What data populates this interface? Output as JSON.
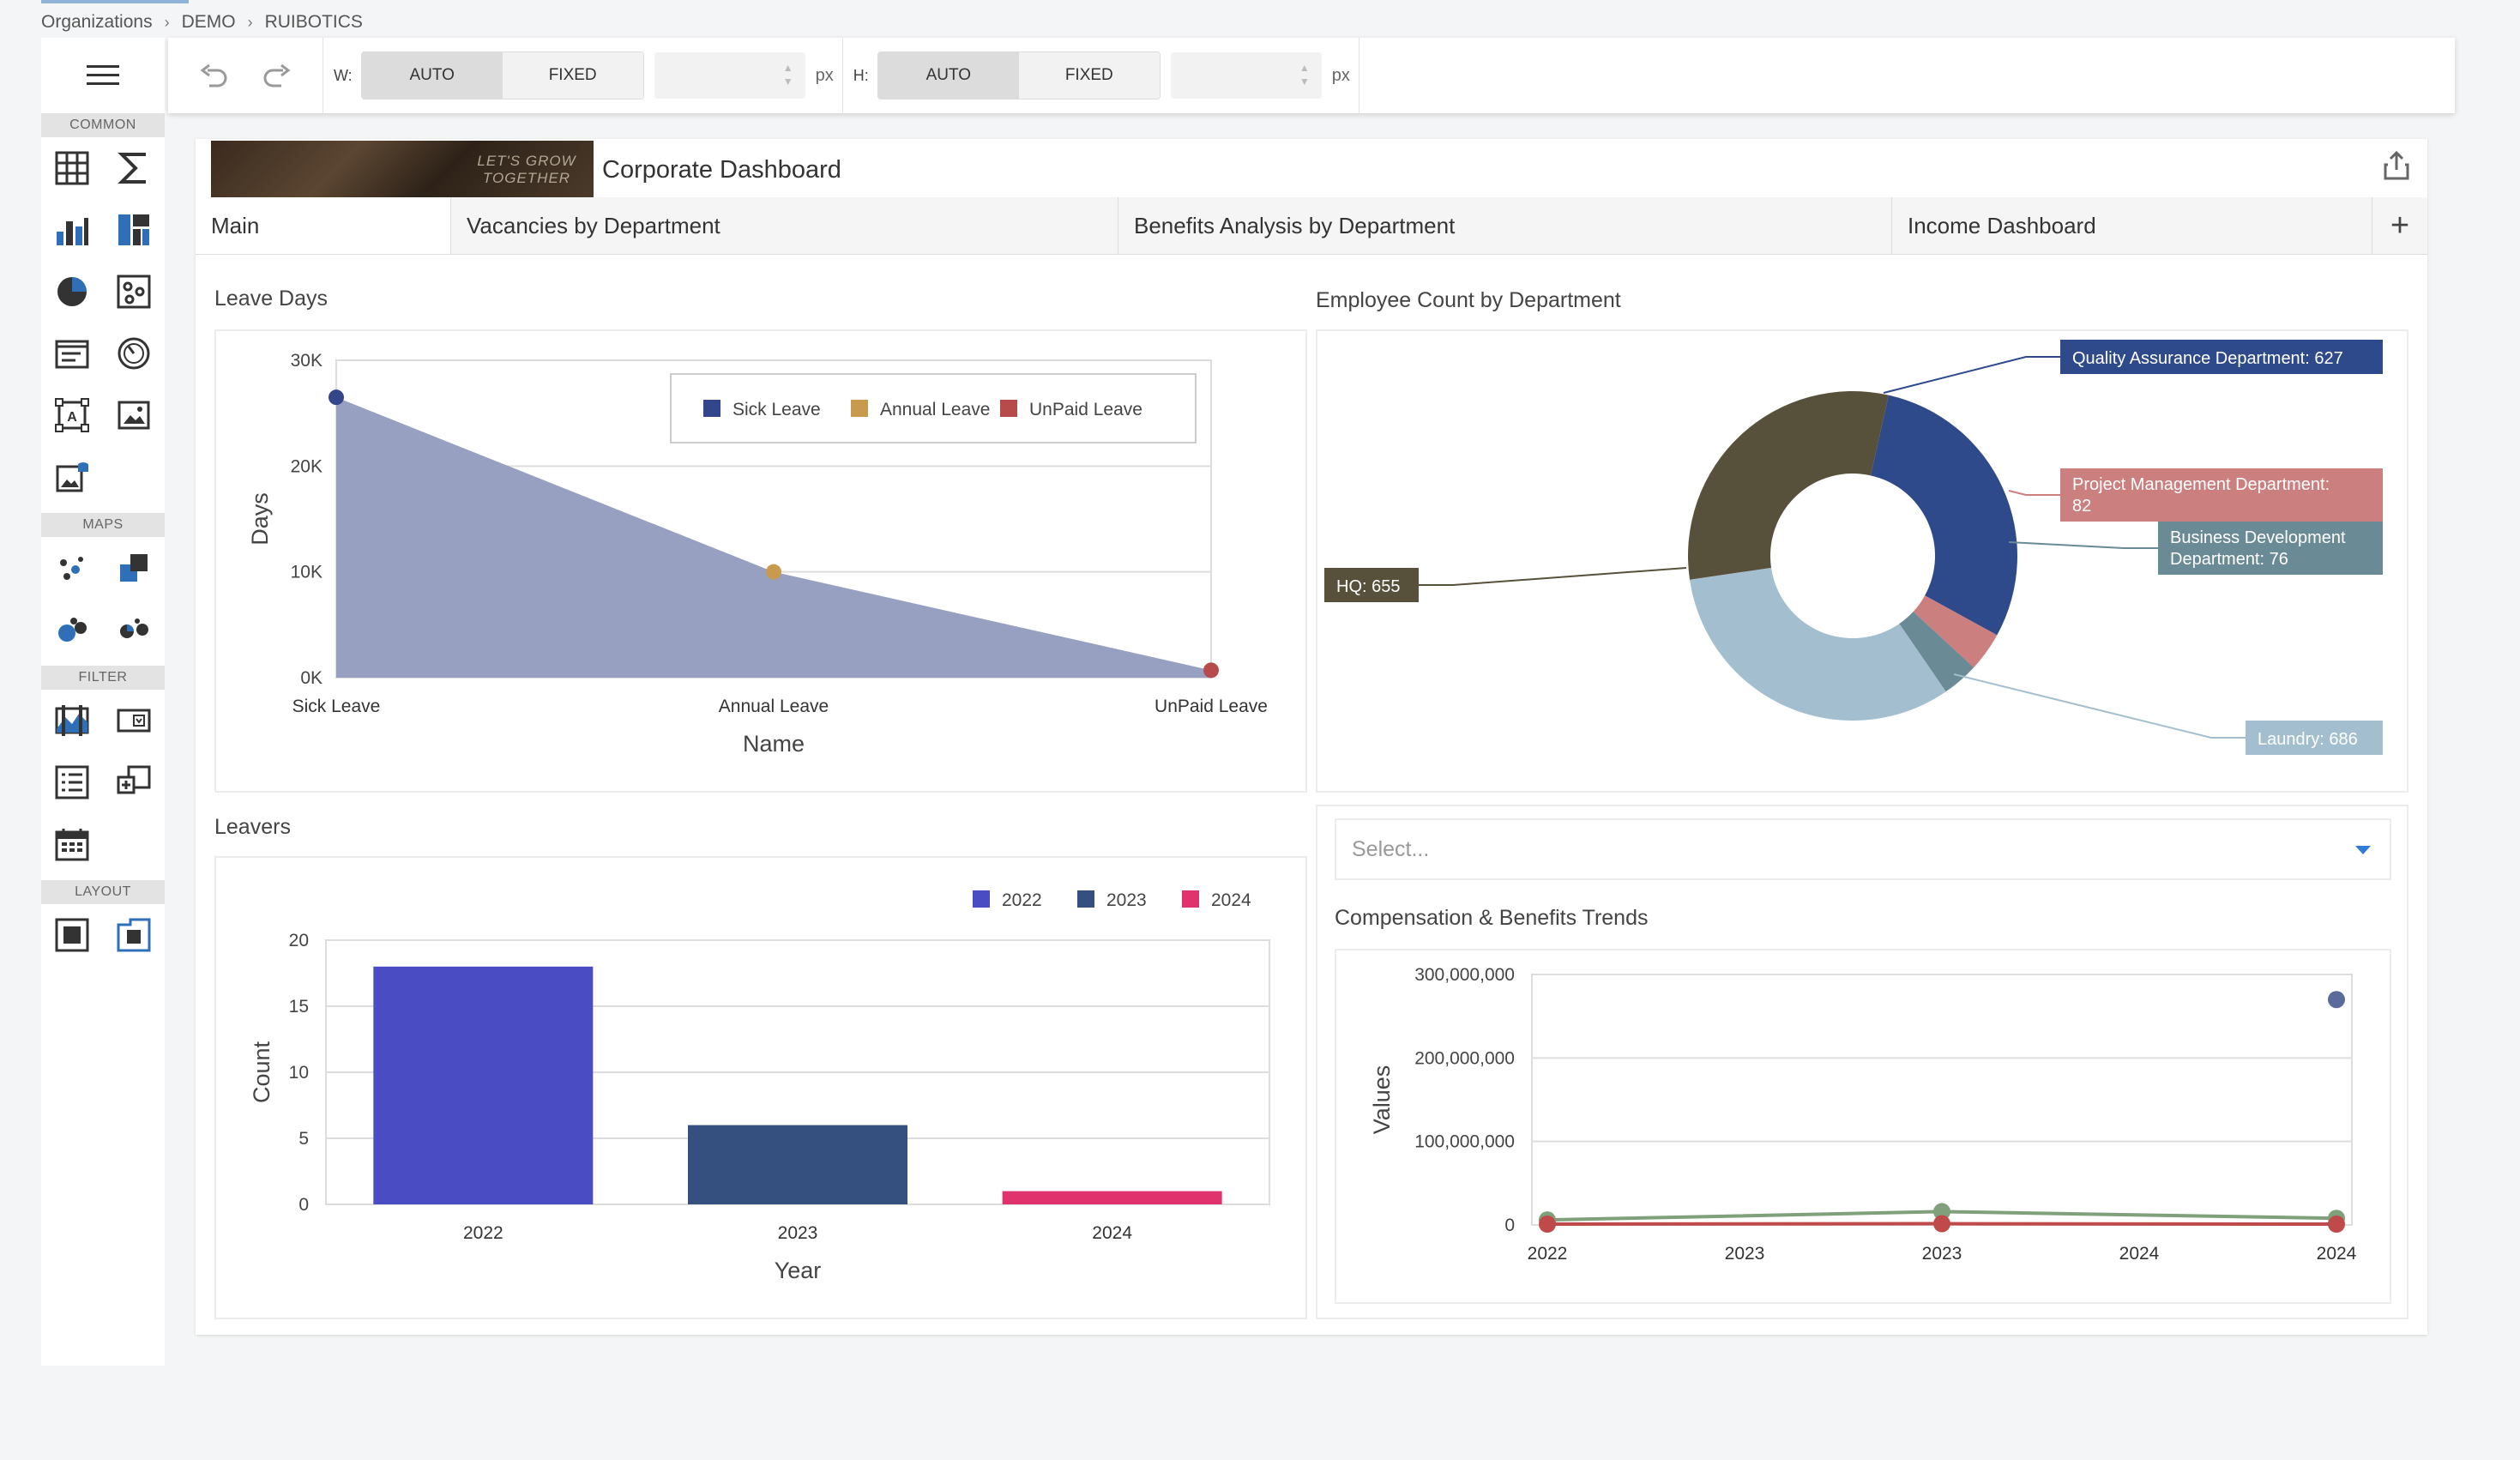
{
  "breadcrumb": [
    "Organizations",
    "DEMO",
    "RUIBOTICS"
  ],
  "palette": {
    "sections": {
      "common": "COMMON",
      "maps": "MAPS",
      "filter": "FILTER",
      "layout": "LAYOUT"
    },
    "common_icons": [
      "table-icon",
      "sigma-icon",
      "bar-chart-icon",
      "treemap-icon",
      "pie-chart-icon",
      "scatter-icon",
      "text-card-icon",
      "gauge-icon",
      "text-box-icon",
      "image-icon",
      "bound-image-icon"
    ],
    "maps_icons": [
      "geo-points-icon",
      "choropleth-icon",
      "bubble-map-icon",
      "pie-map-icon"
    ],
    "filter_icons": [
      "range-filter-icon",
      "combo-box-icon",
      "list-box-icon",
      "tree-view-icon",
      "date-filter-icon"
    ],
    "layout_icons": [
      "group-icon",
      "tab-container-icon"
    ]
  },
  "toolbar": {
    "w_label": "W:",
    "h_label": "H:",
    "auto": "AUTO",
    "fixed": "FIXED",
    "unit": "px",
    "w_value": "",
    "h_value": ""
  },
  "dashboard": {
    "banner_text": "LET'S GROW TOGETHER",
    "title": "Corporate Dashboard",
    "tabs": [
      "Main",
      "Vacancies by Department",
      "Benefits Analysis by Department",
      "Income Dashboard"
    ],
    "add_tab": "+"
  },
  "leave_days": {
    "title": "Leave Days",
    "chart_data": {
      "type": "area",
      "categories": [
        "Sick Leave",
        "Annual Leave",
        "UnPaid Leave"
      ],
      "values": [
        26500,
        10000,
        700
      ],
      "point_colors": [
        "#33468a",
        "#c89a4e",
        "#b74a4a"
      ],
      "fill": "#97a0c0",
      "ylim": [
        0,
        30000
      ],
      "yticks": [
        "0K",
        "10K",
        "20K",
        "30K"
      ],
      "ytick_values": [
        0,
        10000,
        20000,
        30000
      ],
      "xlabel": "Name",
      "ylabel": "Days",
      "legend": [
        {
          "name": "Sick Leave",
          "color": "#33468a"
        },
        {
          "name": "Annual Leave",
          "color": "#c89a4e"
        },
        {
          "name": "UnPaid Leave",
          "color": "#b74a4a"
        }
      ],
      "legend_position": "top-right",
      "grid": true
    }
  },
  "employee_count": {
    "title": "Employee Count by Department",
    "chart_data": {
      "type": "pie",
      "donut": true,
      "slices": [
        {
          "label": "Quality Assurance Department: 627",
          "value": 627,
          "color": "#2e4a8a"
        },
        {
          "label": "Project Management Department: 82",
          "value": 82,
          "color": "#cc7f7f"
        },
        {
          "label": "Business Development Department: 76",
          "value": 76,
          "color": "#6a8a96"
        },
        {
          "label": "Laundry: 686",
          "value": 686,
          "color": "#a3bfcf"
        },
        {
          "label": "HQ: 655",
          "value": 655,
          "color": "#57503b"
        }
      ]
    }
  },
  "leavers": {
    "title": "Leavers",
    "chart_data": {
      "type": "bar",
      "categories": [
        "2022",
        "2023",
        "2024"
      ],
      "values": [
        18,
        6,
        1
      ],
      "colors": [
        "#4a4cc4",
        "#35507f",
        "#e0336e"
      ],
      "ylim": [
        0,
        20
      ],
      "yticks": [
        0,
        5,
        10,
        15,
        20
      ],
      "xlabel": "Year",
      "ylabel": "Count",
      "legend": [
        {
          "name": "2022",
          "color": "#4a4cc4"
        },
        {
          "name": "2023",
          "color": "#35507f"
        },
        {
          "name": "2024",
          "color": "#e0336e"
        }
      ],
      "legend_position": "top-right",
      "grid": true
    }
  },
  "select": {
    "placeholder": "Select..."
  },
  "compensation": {
    "title": "Compensation & Benefits Trends",
    "chart_data": {
      "type": "line",
      "x": [
        "2022",
        "2023",
        "2023",
        "2024",
        "2024"
      ],
      "ylim": [
        0,
        300000000
      ],
      "yticks": [
        "0",
        "100,000,000",
        "200,000,000",
        "300,000,000"
      ],
      "ytick_values": [
        0,
        100000000,
        200000000,
        300000000
      ],
      "ylabel": "Values",
      "series": [
        {
          "color": "#5a6a9a",
          "points": [
            {
              "x": 4,
              "y": 270000000
            }
          ]
        },
        {
          "color": "#7fa07a",
          "points": [
            {
              "x": 0,
              "y": 6000000
            },
            {
              "x": 2,
              "y": 16000000
            },
            {
              "x": 4,
              "y": 8000000
            }
          ]
        },
        {
          "color": "#c04a4a",
          "points": [
            {
              "x": 0,
              "y": 1000000
            },
            {
              "x": 2,
              "y": 1500000
            },
            {
              "x": 4,
              "y": 1000000
            }
          ]
        }
      ],
      "grid": true
    }
  }
}
